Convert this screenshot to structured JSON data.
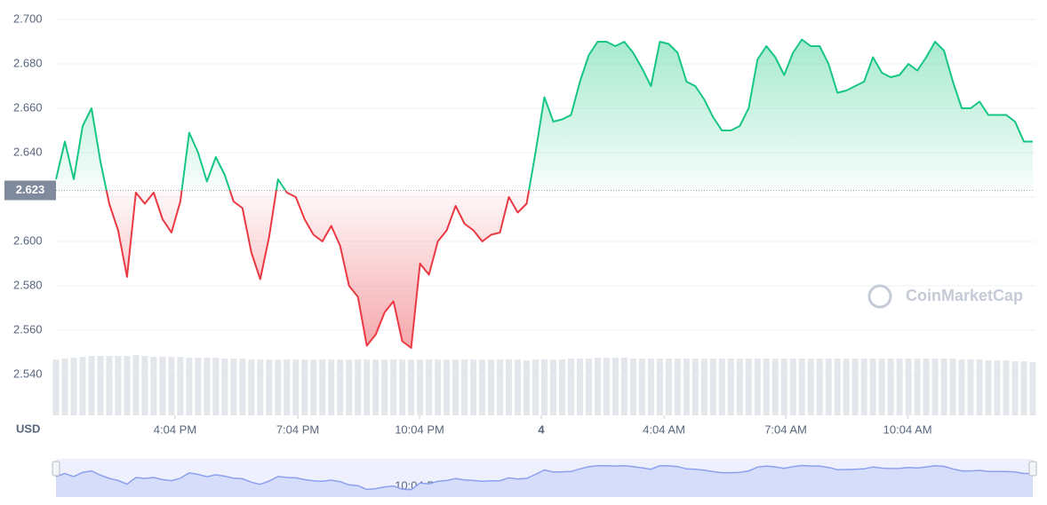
{
  "chart_data": {
    "type": "line",
    "currency": "USD",
    "watermark": "CoinMarketCap",
    "reference_value": 2.623,
    "up_color": "#16c784",
    "down_color": "#ea3943",
    "ylim": [
      2.52,
      2.704
    ],
    "yticks": [
      {
        "value": 2.54,
        "label": "2.540"
      },
      {
        "value": 2.56,
        "label": "2.560"
      },
      {
        "value": 2.58,
        "label": "2.580"
      },
      {
        "value": 2.6,
        "label": "2.600"
      },
      {
        "value": 2.62,
        "label": "2.620"
      },
      {
        "value": 2.64,
        "label": "2.640"
      },
      {
        "value": 2.66,
        "label": "2.660"
      },
      {
        "value": 2.68,
        "label": "2.680"
      },
      {
        "value": 2.7,
        "label": "2.700"
      }
    ],
    "xlim": [
      0,
      110
    ],
    "xticks": [
      {
        "value": 13.41,
        "label": "4:04 PM"
      },
      {
        "value": 27.23,
        "label": "7:04 PM"
      },
      {
        "value": 40.94,
        "label": "10:04 PM"
      },
      {
        "value": 54.65,
        "label": "4"
      },
      {
        "value": 68.47,
        "label": "4:04 AM"
      },
      {
        "value": 82.18,
        "label": "7:04 AM"
      },
      {
        "value": 95.9,
        "label": "10:04 AM"
      }
    ],
    "grid": true,
    "values": [
      2.628,
      2.645,
      2.628,
      2.652,
      2.66,
      2.636,
      2.617,
      2.605,
      2.584,
      2.622,
      2.617,
      2.622,
      2.61,
      2.604,
      2.618,
      2.649,
      2.64,
      2.627,
      2.638,
      2.63,
      2.618,
      2.615,
      2.595,
      2.583,
      2.602,
      2.628,
      2.622,
      2.62,
      2.61,
      2.603,
      2.6,
      2.607,
      2.598,
      2.58,
      2.575,
      2.553,
      2.558,
      2.568,
      2.573,
      2.555,
      2.552,
      2.59,
      2.585,
      2.6,
      2.605,
      2.616,
      2.608,
      2.605,
      2.6,
      2.603,
      2.604,
      2.62,
      2.613,
      2.617,
      2.64,
      2.665,
      2.654,
      2.655,
      2.657,
      2.672,
      2.684,
      2.69,
      2.69,
      2.688,
      2.69,
      2.685,
      2.678,
      2.67,
      2.69,
      2.689,
      2.685,
      2.672,
      2.67,
      2.664,
      2.656,
      2.65,
      2.65,
      2.652,
      2.66,
      2.682,
      2.688,
      2.683,
      2.675,
      2.685,
      2.691,
      2.688,
      2.688,
      2.68,
      2.667,
      2.668,
      2.67,
      2.672,
      2.683,
      2.676,
      2.674,
      2.675,
      2.68,
      2.677,
      2.683,
      2.69,
      2.686,
      2.672,
      2.66,
      2.66,
      2.663,
      2.657,
      2.657,
      2.657,
      2.654,
      2.645,
      2.645
    ],
    "volume": [
      62,
      63,
      64,
      65,
      66,
      66,
      66,
      66,
      66,
      67,
      66,
      65,
      65,
      65,
      65,
      64,
      64,
      64,
      64,
      63,
      63,
      63,
      62,
      62,
      62,
      62,
      62,
      62,
      62,
      62,
      62,
      62,
      62,
      62,
      62,
      62,
      62,
      62,
      62,
      62,
      62,
      62,
      62,
      62,
      62,
      62,
      62,
      62,
      62,
      62,
      62,
      62,
      62,
      61,
      62,
      62,
      62,
      62,
      63,
      63,
      63,
      64,
      64,
      64,
      64,
      63,
      63,
      63,
      63,
      63,
      63,
      63,
      63,
      63,
      63,
      63,
      63,
      63,
      63,
      63,
      63,
      63,
      63,
      63,
      63,
      63,
      63,
      63,
      63,
      63,
      63,
      63,
      63,
      63,
      63,
      63,
      63,
      63,
      63,
      63,
      63,
      63,
      62,
      62,
      62,
      61,
      61,
      61,
      60,
      60,
      59
    ]
  }
}
